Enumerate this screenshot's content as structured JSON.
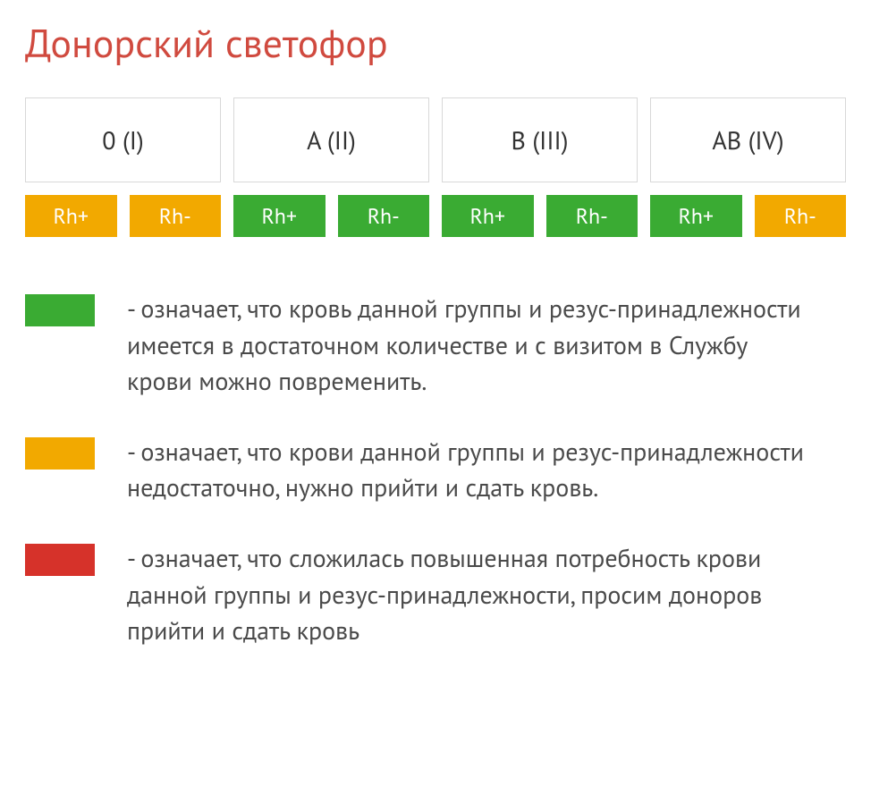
{
  "title": "Донорский светофор",
  "title_color": "#d04a3f",
  "colors": {
    "green": "#3aab33",
    "orange": "#f2a900",
    "red": "#d6322a",
    "box_border": "#d8d8d8",
    "text": "#4a4a4a"
  },
  "groups": [
    {
      "label": "0 (I)",
      "rh_plus_color": "#f2a900",
      "rh_minus_color": "#f2a900"
    },
    {
      "label": "A (II)",
      "rh_plus_color": "#3aab33",
      "rh_minus_color": "#3aab33"
    },
    {
      "label": "B (III)",
      "rh_plus_color": "#3aab33",
      "rh_minus_color": "#3aab33"
    },
    {
      "label": "AB (IV)",
      "rh_plus_color": "#3aab33",
      "rh_minus_color": "#f2a900"
    }
  ],
  "rh_labels": {
    "plus": "Rh+",
    "minus": "Rh-"
  },
  "legend": [
    {
      "color": "#3aab33",
      "text": "- означает, что кровь данной группы и резус-принадлежности имеется в достаточном количестве и с визитом в Службу крови можно повременить."
    },
    {
      "color": "#f2a900",
      "text": "- означает, что крови данной группы и резус-принадлежности недостаточно, нужно прийти и сдать кровь."
    },
    {
      "color": "#d6322a",
      "text": "- означает, что сложилась повышенная потребность крови данной группы и резус-принадлежности, просим доноров прийти и сдать кровь"
    }
  ]
}
